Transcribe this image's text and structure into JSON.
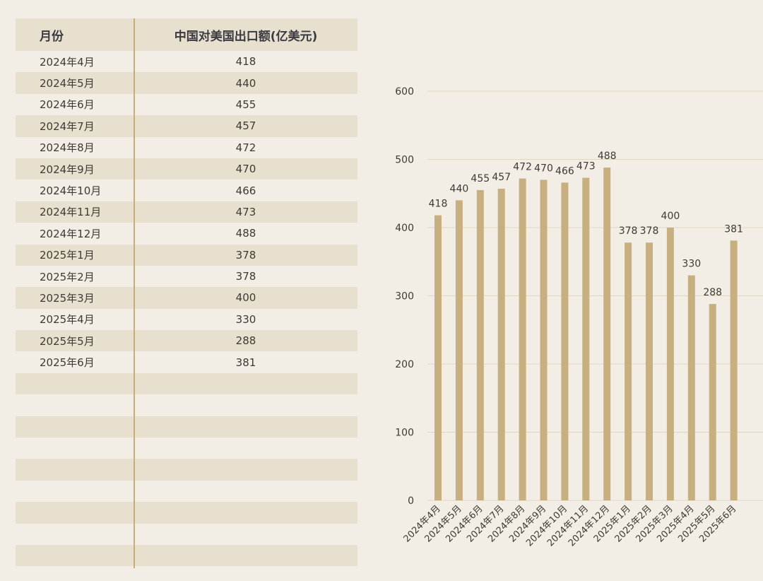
{
  "table": {
    "headers": [
      "月份",
      "中国对美国出口额(亿美元)"
    ],
    "rows": [
      [
        "2024年4月",
        "418"
      ],
      [
        "2024年5月",
        "440"
      ],
      [
        "2024年6月",
        "455"
      ],
      [
        "2024年7月",
        "457"
      ],
      [
        "2024年8月",
        "472"
      ],
      [
        "2024年9月",
        "470"
      ],
      [
        "2024年10月",
        "466"
      ],
      [
        "2024年11月",
        "473"
      ],
      [
        "2024年12月",
        "488"
      ],
      [
        "2025年1月",
        "378"
      ],
      [
        "2025年2月",
        "378"
      ],
      [
        "2025年3月",
        "400"
      ],
      [
        "2025年4月",
        "330"
      ],
      [
        "2025年5月",
        "288"
      ],
      [
        "2025年6月",
        "381"
      ]
    ],
    "empty_row_count": 9
  },
  "colors": {
    "background": "#f2eee6",
    "band": "#e8e0cf",
    "bar": "#c8af80",
    "divider": "#c9ab7e",
    "grid": "#e3d6bd"
  },
  "chart_data": {
    "type": "bar",
    "categories": [
      "2024年4月",
      "2024年5月",
      "2024年6月",
      "2024年7月",
      "2024年8月",
      "2024年9月",
      "2024年10月",
      "2024年11月",
      "2024年12月",
      "2025年1月",
      "2025年2月",
      "2025年3月",
      "2025年4月",
      "2025年5月",
      "2025年6月"
    ],
    "values": [
      418,
      440,
      455,
      457,
      472,
      470,
      466,
      473,
      488,
      378,
      378,
      400,
      330,
      288,
      381
    ],
    "yticks": [
      0,
      100,
      200,
      300,
      400,
      500,
      600
    ],
    "ylim": [
      0,
      600
    ],
    "grid": true,
    "data_labels": true,
    "legend": false
  }
}
